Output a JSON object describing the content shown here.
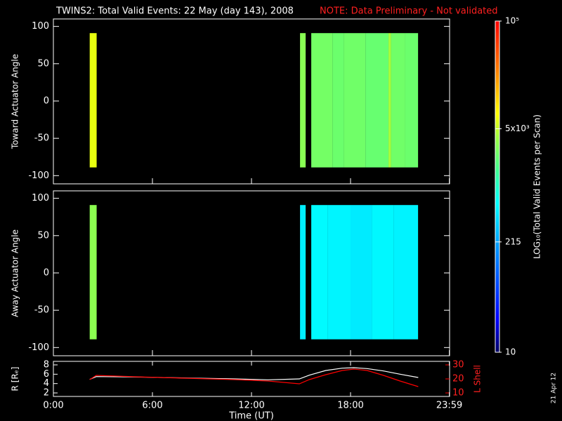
{
  "title": "TWINS2: Total Valid Events: 22 May (day 143), 2008",
  "note": "NOTE: Data Preliminary - Not validated",
  "stamp": "21 Apr 12",
  "chart_data": [
    {
      "type": "heatmap",
      "ylabel": "Toward Actuator Angle",
      "xlim": [
        0,
        24
      ],
      "ylim": [
        -111,
        110
      ],
      "yticks": [
        -100,
        -50,
        0,
        50,
        100
      ],
      "angle_range": [
        -89,
        91
      ],
      "segments": [
        {
          "start": 2.2,
          "end": 2.62,
          "value": 6500
        },
        {
          "start": 14.94,
          "end": 15.28,
          "value": 3200
        },
        {
          "start": 15.62,
          "end": 16.9,
          "value": 2600
        },
        {
          "start": 16.9,
          "end": 17.6,
          "value": 2400
        },
        {
          "start": 17.6,
          "end": 18.9,
          "value": 2500
        },
        {
          "start": 18.9,
          "end": 20.3,
          "value": 2300
        },
        {
          "start": 20.3,
          "end": 20.45,
          "value": 4200
        },
        {
          "start": 20.45,
          "end": 21.3,
          "value": 2500
        },
        {
          "start": 21.3,
          "end": 22.09,
          "value": 2400
        }
      ]
    },
    {
      "type": "heatmap",
      "ylabel": "Away Actuator Angle",
      "xlim": [
        0,
        24
      ],
      "ylim": [
        -111,
        110
      ],
      "yticks": [
        -100,
        -50,
        0,
        50,
        100
      ],
      "angle_range": [
        -89,
        91
      ],
      "segments": [
        {
          "start": 2.2,
          "end": 2.62,
          "value": 3300
        },
        {
          "start": 14.94,
          "end": 15.28,
          "value": 520
        },
        {
          "start": 15.62,
          "end": 16.6,
          "value": 600
        },
        {
          "start": 16.6,
          "end": 18.0,
          "value": 560
        },
        {
          "start": 18.0,
          "end": 19.3,
          "value": 500
        },
        {
          "start": 19.3,
          "end": 20.6,
          "value": 580
        },
        {
          "start": 20.6,
          "end": 22.09,
          "value": 550
        }
      ]
    },
    {
      "type": "line",
      "xlabel": "Time (UT)",
      "ylabel": "R [Rₑ]",
      "y2label": "L Shell",
      "xlim": [
        0,
        24
      ],
      "xticks": [
        {
          "value": 0,
          "label": "0:00"
        },
        {
          "value": 6,
          "label": "6:00"
        },
        {
          "value": 12,
          "label": "12:00"
        },
        {
          "value": 18,
          "label": "18:00"
        },
        {
          "value": 23.983,
          "label": "23:59"
        }
      ],
      "ylim": [
        1.25,
        8.75
      ],
      "yticks": [
        2,
        4,
        6,
        8
      ],
      "y2lim": [
        7.5,
        32.5
      ],
      "y2ticks": [
        10,
        20,
        30
      ],
      "x": [
        2.2,
        2.6,
        5,
        8,
        11,
        13,
        14.9,
        15.5,
        16.5,
        17.5,
        18.2,
        19,
        20,
        21,
        22.1
      ],
      "series": [
        {
          "color": "#ffffff",
          "values": [
            4.9,
            5.5,
            5.4,
            5.2,
            5.0,
            4.8,
            5.0,
            5.8,
            6.8,
            7.3,
            7.4,
            7.2,
            6.7,
            6.0,
            5.3
          ]
        },
        {
          "color": "#ff0000",
          "axis": "y2",
          "values": [
            19.5,
            22.5,
            21.5,
            20.5,
            19.5,
            18.5,
            16.5,
            19.5,
            23,
            26,
            27,
            26,
            22.5,
            18.5,
            14.5
          ]
        }
      ]
    },
    {
      "type": "colorbar",
      "label": "LOG₁₀(Total Valid Events per Scan)",
      "log": true,
      "lim": [
        10,
        100000
      ],
      "ticks": [
        {
          "value": 10,
          "label": "10"
        },
        {
          "value": 215,
          "label": "215"
        },
        {
          "value": 5000,
          "label": "5x10³"
        },
        {
          "value": 100000,
          "label": "10⁵"
        }
      ],
      "colormap": [
        [
          0,
          "#000060"
        ],
        [
          0.1,
          "#0000ff"
        ],
        [
          0.33,
          "#00a0ff"
        ],
        [
          0.45,
          "#00ffff"
        ],
        [
          0.55,
          "#40ff90"
        ],
        [
          0.65,
          "#a0ff40"
        ],
        [
          0.72,
          "#ffff00"
        ],
        [
          0.85,
          "#ff8000"
        ],
        [
          1,
          "#ff0000"
        ]
      ]
    }
  ]
}
